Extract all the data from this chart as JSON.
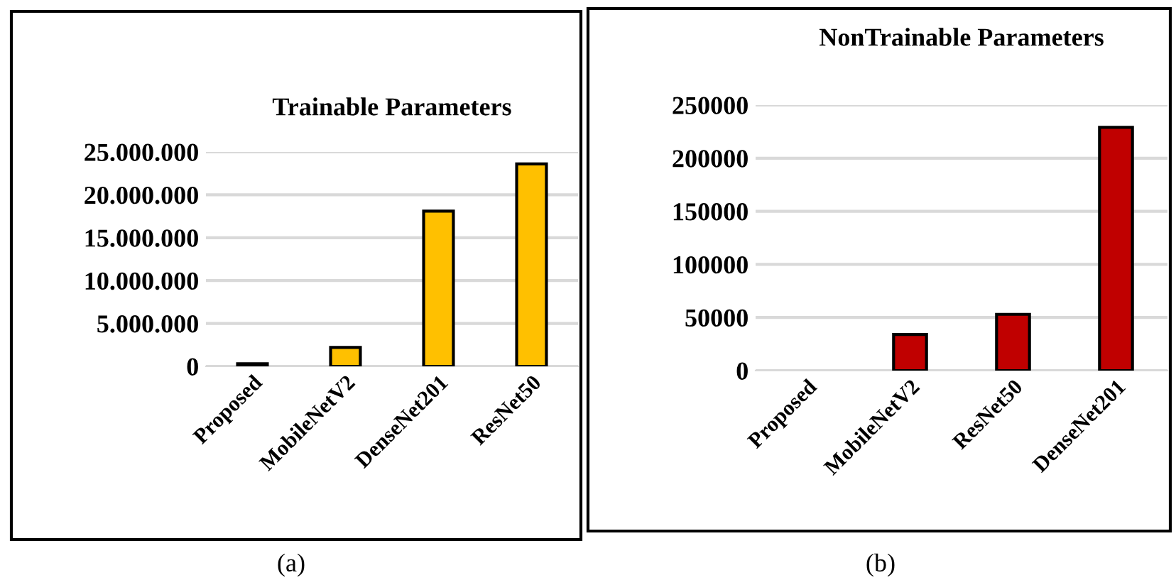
{
  "chart_data": [
    {
      "type": "bar",
      "title": "Trainable Parameters",
      "categories": [
        "Proposed",
        "MobileNetV2",
        "DenseNet201",
        "ResNet50"
      ],
      "values": [
        300000,
        2200000,
        18100000,
        23600000
      ],
      "color": "#ffc000",
      "ylim": [
        0,
        25000000
      ],
      "yticks": [
        0,
        {
          "value": 5000000,
          "label": "5.000.000"
        },
        {
          "value": 10000000,
          "label": "10.000.000"
        },
        {
          "value": 15000000,
          "label": "15.000.000"
        },
        {
          "value": 20000000,
          "label": "20.000.000"
        },
        {
          "value": 25000000,
          "label": "25.000.000"
        }
      ],
      "grid": "y",
      "annotations": [
        "(a)"
      ]
    },
    {
      "type": "bar",
      "title": "NonTrainable Parameters",
      "categories": [
        "Proposed",
        "MobileNetV2",
        "ResNet50",
        "DenseNet201"
      ],
      "values": [
        0,
        34000,
        53000,
        229000
      ],
      "color": "#c00000",
      "ylim": [
        0,
        250000
      ],
      "yticks": [
        0,
        50000,
        100000,
        150000,
        200000,
        250000
      ],
      "grid": "y",
      "annotations": [
        "(b)"
      ]
    }
  ]
}
